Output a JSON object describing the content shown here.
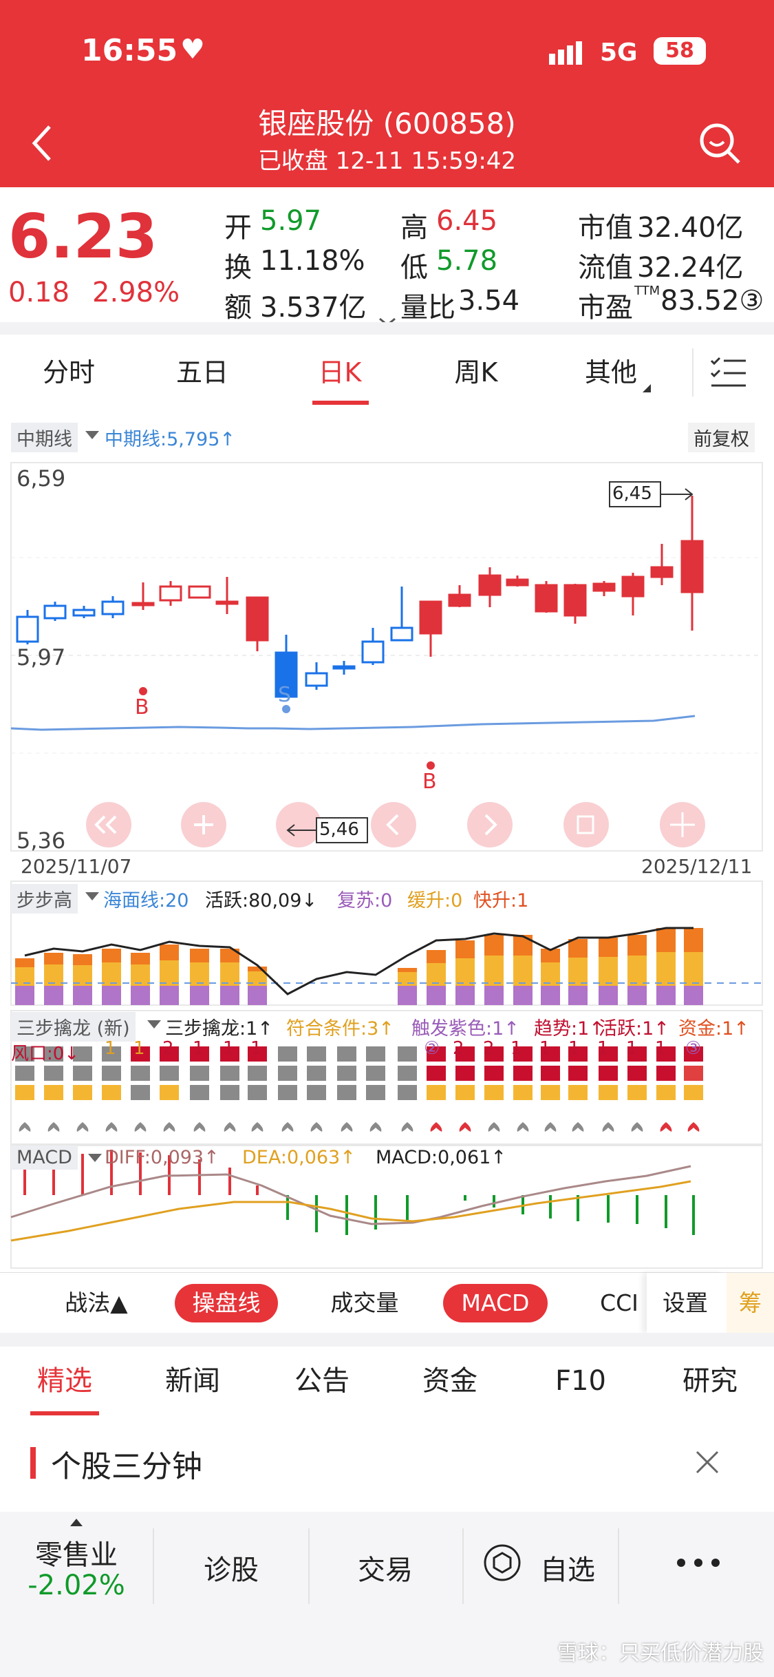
{
  "status_bar": {
    "time": "16:55",
    "network": "5G",
    "battery": "58"
  },
  "header": {
    "title": "银座股份 (600858)",
    "subtitle": "已收盘 12-11 15:59:42"
  },
  "quote": {
    "price": "6.23",
    "change": "0.18",
    "change_pct": "2.98%",
    "open_label": "开",
    "open": "5.97",
    "high_label": "高",
    "high": "6.45",
    "turnover_label": "换",
    "turnover": "11.18%",
    "low_label": "低",
    "low": "5.78",
    "amount_label": "额",
    "amount": "3.537亿",
    "vol_ratio_label": "量比",
    "vol_ratio": "3.54",
    "mktcap_label": "市值",
    "mktcap": "32.40亿",
    "float_label": "流值",
    "float_cap": "32.24亿",
    "pe_label": "市盈",
    "pe_sup": "TTM",
    "pe": "83.52③"
  },
  "period_tabs": [
    {
      "label": "分时"
    },
    {
      "label": "五日"
    },
    {
      "label": "日K"
    },
    {
      "label": "周K"
    },
    {
      "label": "其他"
    }
  ],
  "kline": {
    "indicator_tag": "中期线",
    "indicator_value": "中期线:5,795↑",
    "adjust": "前复权",
    "y_top": "6,59",
    "y_mid": "5,97",
    "y_bottom": "5,36",
    "date_start": "2025/11/07",
    "date_end": "2025/12/11",
    "high_mark": "6,45",
    "low_mark": "5,46",
    "signal_b": "B",
    "signal_s": "S"
  },
  "bubugao": {
    "tag": "步步高",
    "sea": "海面线:20",
    "active": "活跃:80,09↓",
    "recover": "复苏:0",
    "slow": "缓升:0",
    "fast": "快升:1"
  },
  "sanbu": {
    "tag": "三步擒龙 (新)",
    "v1": "三步擒龙:1↑",
    "v2": "符合条件:3↑",
    "v3": "触发紫色:1↑",
    "v4": "趋势:1↑",
    "v5": "活跃:1↑",
    "v6": "资金:1↑",
    "wind": "风口:0↓",
    "numbers": [
      "1",
      "1",
      "2",
      "1",
      "1",
      "1",
      "②",
      "2",
      "2",
      "1",
      "1",
      "1",
      "1",
      "1",
      "1",
      "③"
    ]
  },
  "macd": {
    "tag": "MACD",
    "diff": "DIFF:0,093↑",
    "dea": "DEA:0,063↑",
    "macd": "MACD:0,061↑"
  },
  "toolbar": {
    "zhanfa": "战法▲",
    "caopan": "操盘线",
    "volume": "成交量",
    "macd": "MACD",
    "cci": "CCI",
    "settings": "设置",
    "chou": "筹"
  },
  "news_tabs": [
    {
      "label": "精选"
    },
    {
      "label": "新闻"
    },
    {
      "label": "公告"
    },
    {
      "label": "资金"
    },
    {
      "label": "F10"
    },
    {
      "label": "研究"
    }
  ],
  "section": {
    "title": "个股三分钟"
  },
  "bottom_nav": {
    "sector": "零售业",
    "sector_change": "-2.02%",
    "diagnose": "诊股",
    "trade": "交易",
    "watch": "自选"
  },
  "watermark": "雪球：只买低价潜力股"
}
